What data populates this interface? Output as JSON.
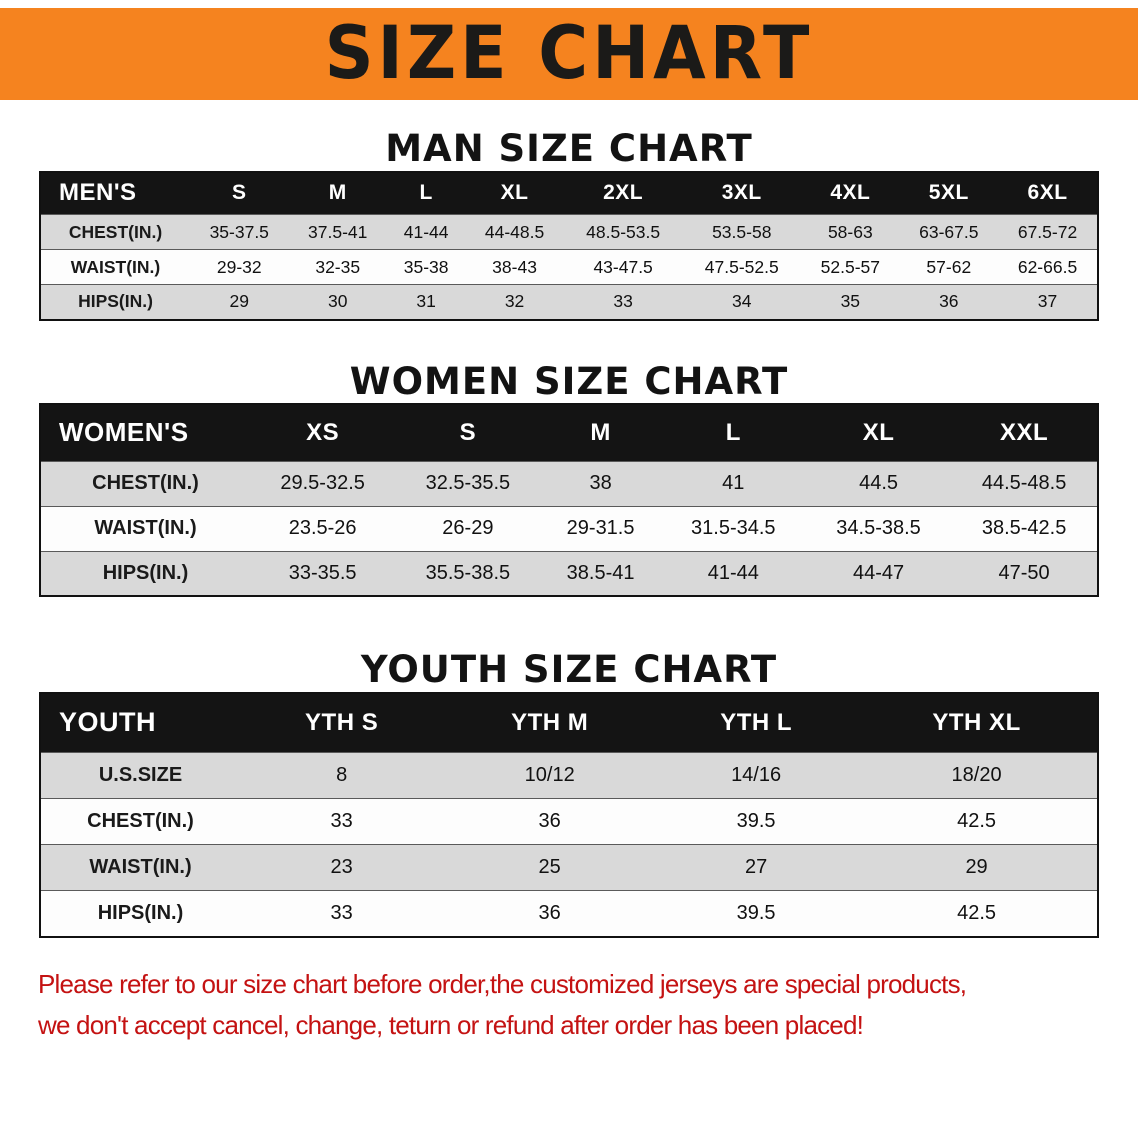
{
  "banner": {
    "title": "SIZE CHART",
    "bg_color": "#F5831F",
    "text_color": "#1b1a18"
  },
  "sections": [
    {
      "id": "men",
      "heading": "MAN SIZE CHART",
      "table": {
        "header": [
          "MEN'S",
          "S",
          "M",
          "L",
          "XL",
          "2XL",
          "3XL",
          "4XL",
          "5XL",
          "6XL"
        ],
        "rows": [
          {
            "label": "CHEST(IN.)",
            "values": [
              "35-37.5",
              "37.5-41",
              "41-44",
              "44-48.5",
              "48.5-53.5",
              "53.5-58",
              "58-63",
              "63-67.5",
              "67.5-72"
            ]
          },
          {
            "label": "WAIST(IN.)",
            "values": [
              "29-32",
              "32-35",
              "35-38",
              "38-43",
              "43-47.5",
              "47.5-52.5",
              "52.5-57",
              "57-62",
              "62-66.5"
            ]
          },
          {
            "label": "HIPS(IN.)",
            "values": [
              "29",
              "30",
              "31",
              "32",
              "33",
              "34",
              "35",
              "36",
              "37"
            ]
          }
        ]
      }
    },
    {
      "id": "women",
      "heading": "WOMEN SIZE CHART",
      "table": {
        "header": [
          "WOMEN'S",
          "XS",
          "S",
          "M",
          "L",
          "XL",
          "XXL"
        ],
        "rows": [
          {
            "label": "CHEST(IN.)",
            "values": [
              "29.5-32.5",
              "32.5-35.5",
              "38",
              "41",
              "44.5",
              "44.5-48.5"
            ]
          },
          {
            "label": "WAIST(IN.)",
            "values": [
              "23.5-26",
              "26-29",
              "29-31.5",
              "31.5-34.5",
              "34.5-38.5",
              "38.5-42.5"
            ]
          },
          {
            "label": "HIPS(IN.)",
            "values": [
              "33-35.5",
              "35.5-38.5",
              "38.5-41",
              "41-44",
              "44-47",
              "47-50"
            ]
          }
        ]
      }
    },
    {
      "id": "youth",
      "heading": "YOUTH SIZE CHART",
      "table": {
        "header": [
          "YOUTH",
          "YTH S",
          "YTH M",
          "YTH L",
          "YTH XL"
        ],
        "rows": [
          {
            "label": "U.S.SIZE",
            "values": [
              "8",
              "10/12",
              "14/16",
              "18/20"
            ]
          },
          {
            "label": "CHEST(IN.)",
            "values": [
              "33",
              "36",
              "39.5",
              "42.5"
            ]
          },
          {
            "label": "WAIST(IN.)",
            "values": [
              "23",
              "25",
              "27",
              "29"
            ]
          },
          {
            "label": "HIPS(IN.)",
            "values": [
              "33",
              "36",
              "39.5",
              "42.5"
            ]
          }
        ]
      }
    }
  ],
  "disclaimer": {
    "line1": "Please refer to our size chart before order,the customized jerseys are special products,",
    "line2": "we don't accept cancel, change, teturn or refund after order has been placed!",
    "color": "#c41212"
  }
}
